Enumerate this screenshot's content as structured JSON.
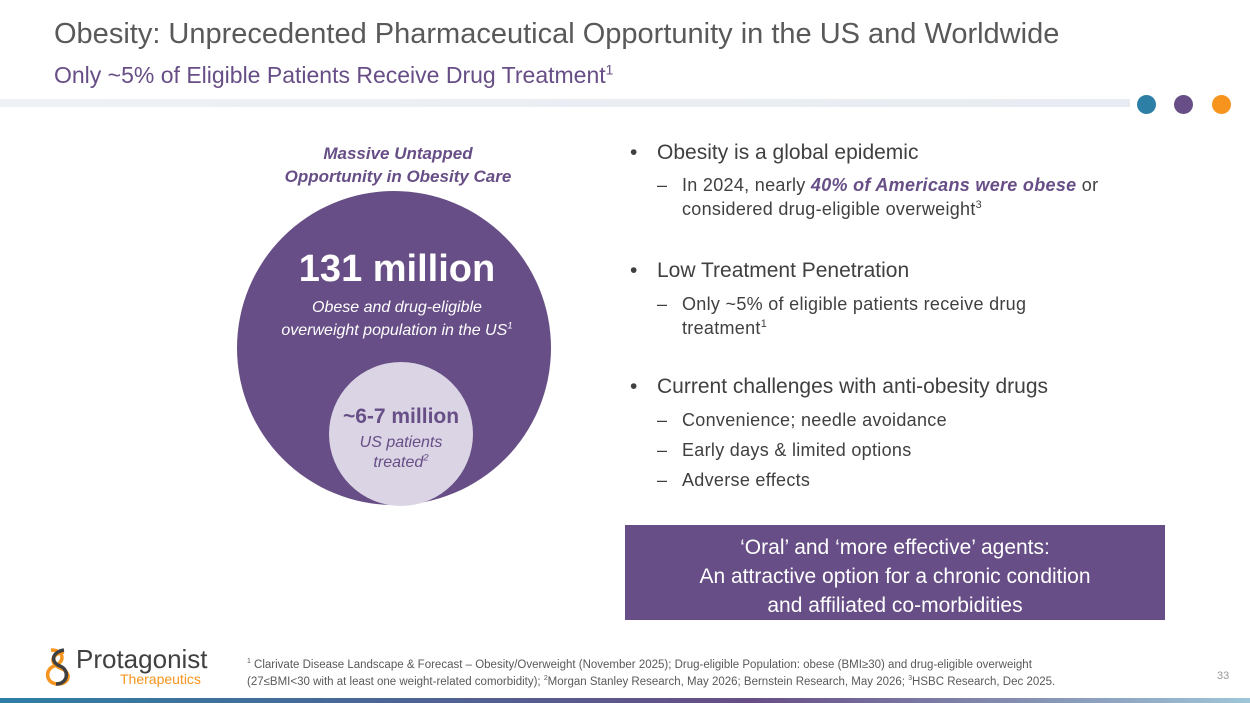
{
  "header": {
    "title": "Obesity: Unprecedented Pharmaceutical Opportunity in the US and Worldwide",
    "subtitle": "Only ~5% of Eligible Patients Receive Drug Treatment",
    "subtitle_ref": "1"
  },
  "graphic": {
    "heading": [
      "Massive Untapped",
      "Opportunity in Obesity Care"
    ],
    "outer": {
      "value": "131 million",
      "caption": [
        "Obese and drug-eligible",
        "overweight population in the US"
      ],
      "caption_ref": "1"
    },
    "inner": {
      "value": "~6-7 million",
      "caption": [
        "US patients",
        "treated"
      ],
      "caption_ref": "2"
    }
  },
  "bullets": [
    {
      "text": "Obesity is a global epidemic",
      "sub": [
        {
          "line1": [
            "In 2024, nearly ",
            "40% of Americans were obese",
            " or"
          ],
          "line2": "considered drug-eligible overweight",
          "ref": "3"
        }
      ]
    },
    {
      "text": "Low Treatment Penetration",
      "sub": [
        {
          "line1": [
            "Only ~5% of eligible patients receive drug"
          ],
          "line2": "treatment",
          "ref": "1"
        }
      ]
    },
    {
      "text": "Current challenges with anti-obesity drugs",
      "sub": [
        {
          "line1": [
            "Convenience; needle avoidance"
          ]
        },
        {
          "line1": [
            "Early days & limited options"
          ]
        },
        {
          "line1": [
            "Adverse effects"
          ]
        }
      ]
    }
  ],
  "callout": [
    "‘Oral’ and ‘more effective’ agents:",
    "An attractive option for a chronic condition",
    "and affiliated co-morbidities"
  ],
  "logo": {
    "name": "Protagonist",
    "tagline": "Therapeutics"
  },
  "footnotes": {
    "line1": [
      "1",
      " Clarivate Disease Landscape & Forecast – Obesity/Overweight (November 2025); Drug-eligible Population: obese (BMI≥30) and drug-eligible overweight"
    ],
    "line2": [
      "(27≤BMI<30 with at least one weight-related comorbidity); ",
      "2",
      "Morgan Stanley Research, May 2026; Bernstein Research, May 2026; ",
      "3",
      "HSBC Research, Dec 2025."
    ]
  },
  "page_number": "33"
}
